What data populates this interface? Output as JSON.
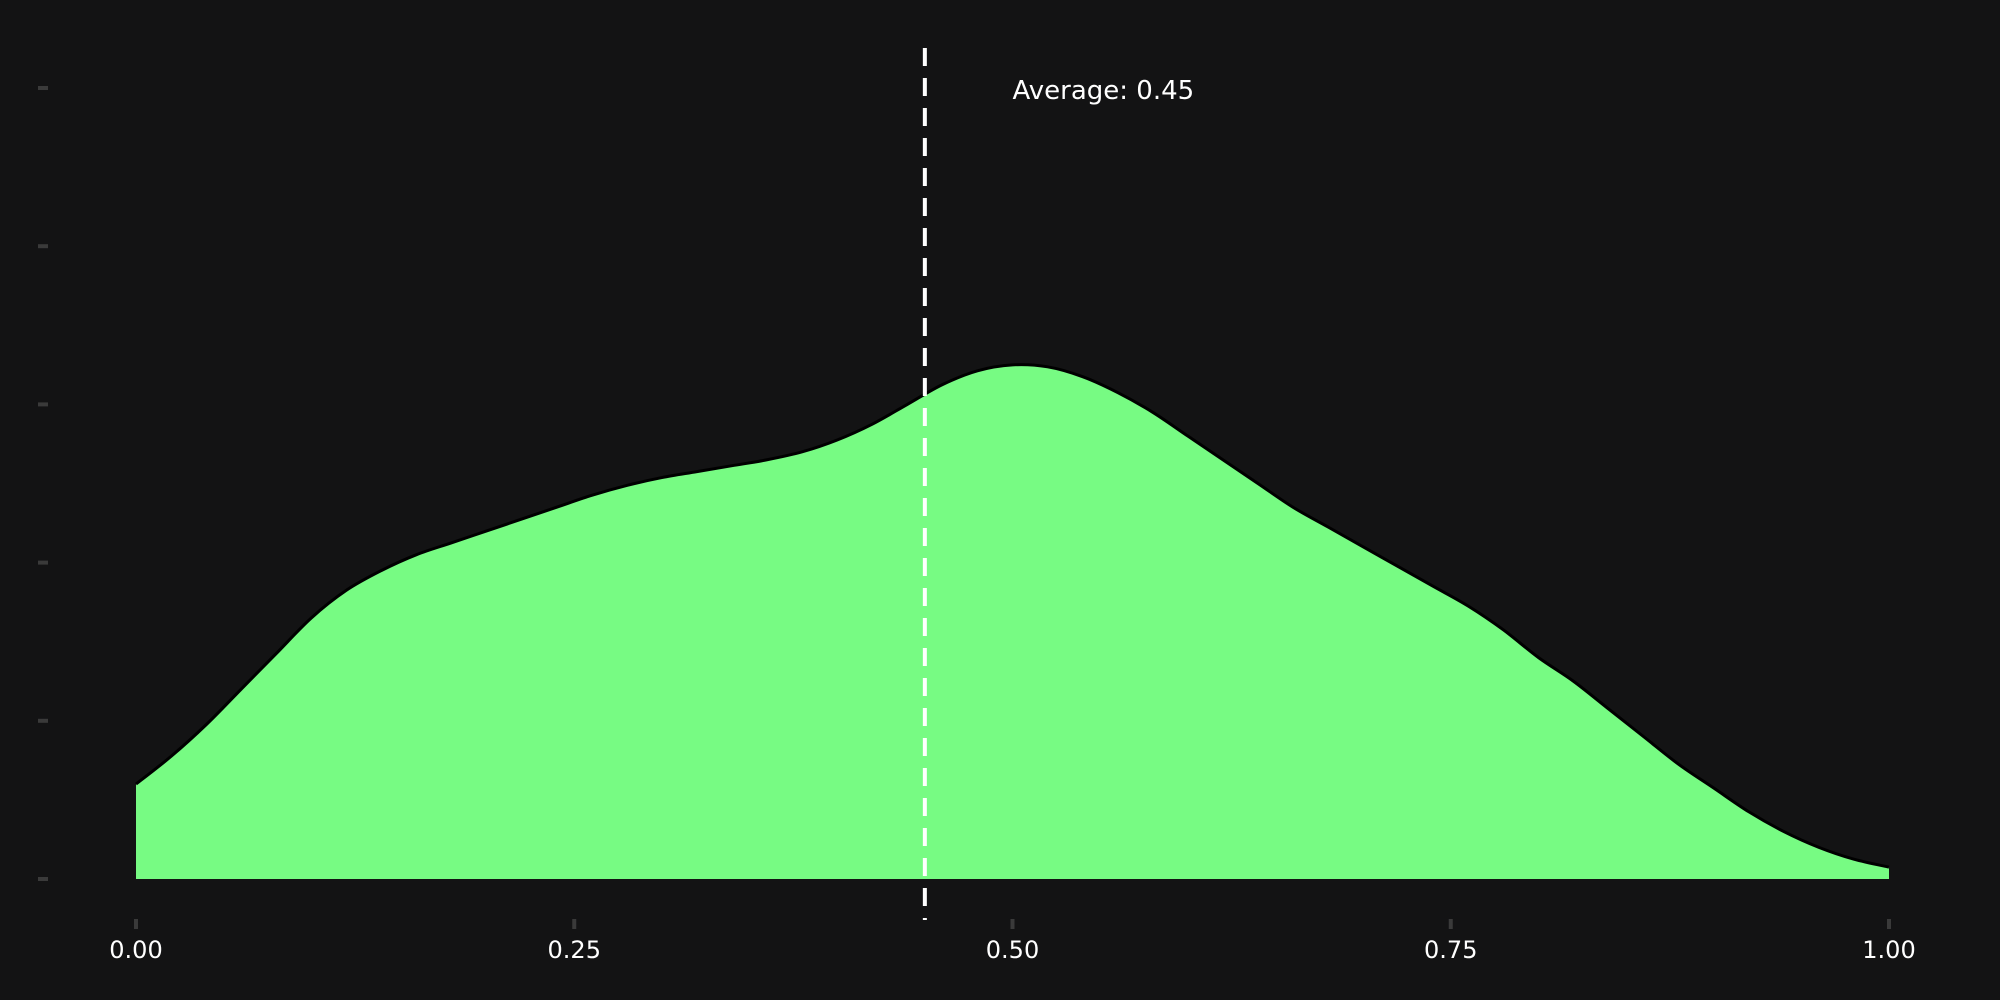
{
  "chart_data": {
    "type": "area",
    "title": "",
    "xlabel": "",
    "ylabel": "",
    "xlim": [
      0,
      1
    ],
    "ylim": [
      0,
      2.0
    ],
    "x_ticks": [
      0,
      0.25,
      0.5,
      0.75,
      1.0
    ],
    "x_tick_labels": [
      "0.00",
      "0.25",
      "0.50",
      "0.75",
      "1.00"
    ],
    "y_ticks": [
      0,
      0.4,
      0.8,
      1.2,
      1.6,
      2.0
    ],
    "y_tick_labels_shown": false,
    "grid": false,
    "legend": "none",
    "series": [
      {
        "fill_color": "#77fb83",
        "line_color": "#000000",
        "x": [
          0.0,
          0.02,
          0.04,
          0.06,
          0.08,
          0.1,
          0.12,
          0.14,
          0.16,
          0.18,
          0.2,
          0.22,
          0.24,
          0.26,
          0.28,
          0.3,
          0.32,
          0.34,
          0.36,
          0.38,
          0.4,
          0.42,
          0.44,
          0.46,
          0.48,
          0.5,
          0.52,
          0.54,
          0.56,
          0.58,
          0.6,
          0.62,
          0.64,
          0.66,
          0.68,
          0.7,
          0.72,
          0.74,
          0.76,
          0.78,
          0.8,
          0.82,
          0.84,
          0.86,
          0.88,
          0.9,
          0.92,
          0.94,
          0.96,
          0.98,
          1.0
        ],
        "y": [
          0.24,
          0.31,
          0.39,
          0.48,
          0.57,
          0.66,
          0.73,
          0.78,
          0.82,
          0.85,
          0.88,
          0.91,
          0.94,
          0.97,
          0.995,
          1.015,
          1.03,
          1.045,
          1.06,
          1.08,
          1.11,
          1.15,
          1.2,
          1.25,
          1.285,
          1.3,
          1.295,
          1.27,
          1.23,
          1.18,
          1.12,
          1.06,
          1.0,
          0.94,
          0.89,
          0.84,
          0.79,
          0.74,
          0.69,
          0.63,
          0.56,
          0.5,
          0.43,
          0.36,
          0.29,
          0.23,
          0.17,
          0.12,
          0.08,
          0.05,
          0.03
        ]
      }
    ],
    "reference_lines": [
      {
        "orientation": "vertical",
        "x": 0.45,
        "style": "dashed",
        "color": "#ffffff"
      }
    ],
    "annotations": [
      {
        "text": "Average: 0.45",
        "x": 0.5,
        "y": 2.0
      }
    ]
  }
}
